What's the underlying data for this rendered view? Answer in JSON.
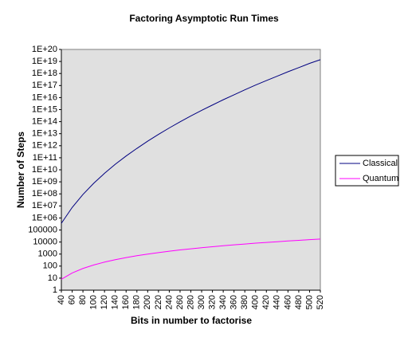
{
  "chart_data": {
    "type": "line",
    "title": "Factoring Asymptotic Run Times",
    "xlabel": "Bits in number to factorise",
    "ylabel": "Number of Steps",
    "x": [
      40,
      60,
      80,
      100,
      120,
      140,
      160,
      180,
      200,
      220,
      240,
      260,
      280,
      300,
      320,
      340,
      360,
      380,
      400,
      420,
      440,
      460,
      480,
      500,
      520
    ],
    "series": [
      {
        "name": "Classical",
        "color": "#000080",
        "values": [
          360000.0,
          7400000.0,
          89000000.0,
          760000000.0,
          5100000000.0,
          29000000000.0,
          140000000000.0,
          600000000000.0,
          2400000000000.0,
          8700000000000.0,
          30000000000000.0,
          96000000000000.0,
          300000000000000.0,
          870000000000000.0,
          2400000000000000.0,
          6600000000000000.0,
          1.7e+16,
          4.4e+16,
          1.1e+17,
          2.6e+17,
          6e+17,
          1.4e+18,
          3.1e+18,
          6.9e+18,
          1.4e+19
        ]
      },
      {
        "name": "Quantum",
        "color": "#ff00ff",
        "values": [
          8,
          27,
          64,
          125,
          216,
          343,
          512,
          729,
          1000,
          1331,
          1728,
          2197,
          2744,
          3375,
          4096,
          4913,
          5832,
          6859,
          8000,
          9261,
          10648,
          12167,
          13824,
          15625,
          17576
        ]
      }
    ],
    "xlim": [
      40,
      520
    ],
    "xticks": [
      40,
      60,
      80,
      100,
      120,
      140,
      160,
      180,
      200,
      220,
      240,
      260,
      280,
      300,
      320,
      340,
      360,
      380,
      400,
      420,
      440,
      460,
      480,
      500,
      520
    ],
    "ylim": [
      1,
      1e+20
    ],
    "yscale": "log",
    "yticks": [
      1,
      10,
      100,
      1000,
      10000,
      100000,
      {
        "value": 1000000.0,
        "label": "1E+06"
      },
      {
        "value": 10000000.0,
        "label": "1E+07"
      },
      {
        "value": 100000000.0,
        "label": "1E+08"
      },
      {
        "value": 1000000000.0,
        "label": "1E+09"
      },
      {
        "value": 10000000000.0,
        "label": "1E+10"
      },
      {
        "value": 100000000000.0,
        "label": "1E+11"
      },
      {
        "value": 1000000000000.0,
        "label": "1E+12"
      },
      {
        "value": 10000000000000.0,
        "label": "1E+13"
      },
      {
        "value": 100000000000000.0,
        "label": "1E+14"
      },
      {
        "value": 1000000000000000.0,
        "label": "1E+15"
      },
      {
        "value": 1e+16,
        "label": "1E+16"
      },
      {
        "value": 1e+17,
        "label": "1E+17"
      },
      {
        "value": 1e+18,
        "label": "1E+18"
      },
      {
        "value": 1e+19,
        "label": "1E+19"
      },
      {
        "value": 1e+20,
        "label": "1E+20"
      }
    ],
    "grid": false,
    "legend": "right"
  }
}
